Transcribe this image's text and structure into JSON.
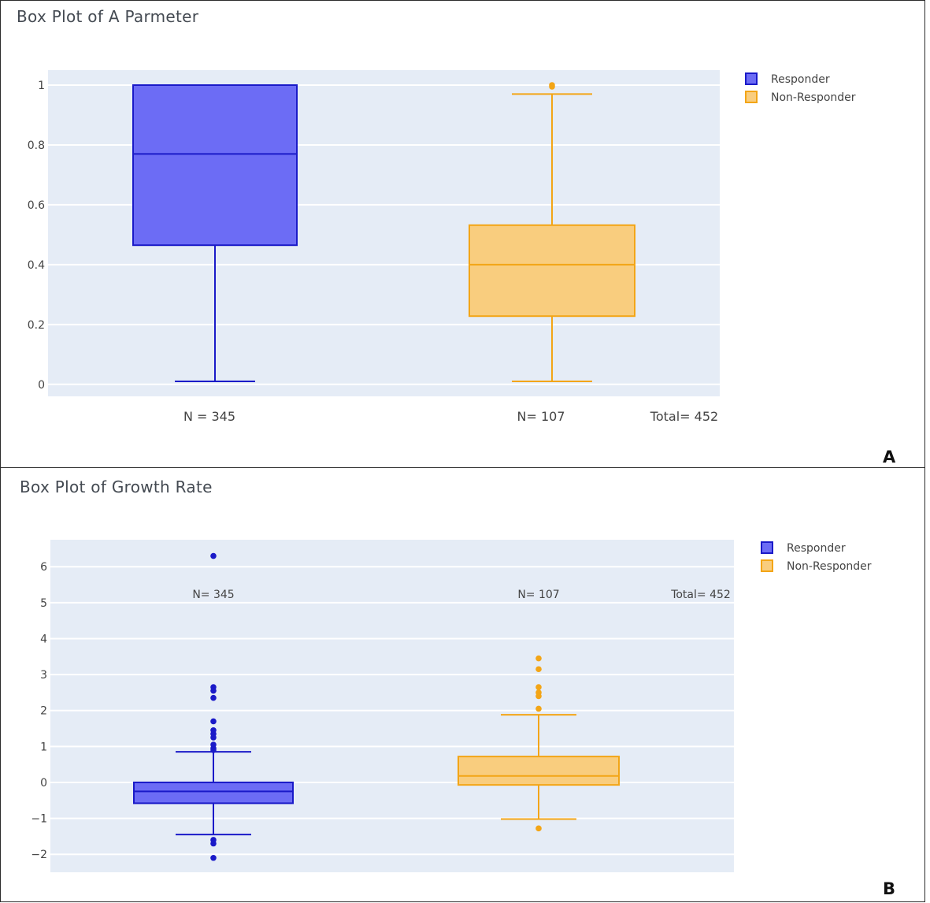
{
  "panel_a": {
    "letter": "A"
  },
  "panel_b": {
    "letter": "B"
  },
  "colors": {
    "responder_line": "#1a1ac8",
    "responder_fill": "#6c6cf5",
    "nonresponder_line": "#f3a516",
    "nonresponder_fill": "#f9cd7e",
    "plot_bg": "#e5ecf6"
  },
  "chart_data": [
    {
      "type": "box",
      "title": "Box Plot of A Parmeter",
      "xlabel": "",
      "ylabel": "",
      "ylim": [
        -0.04,
        1.05
      ],
      "yticks": [
        0,
        0.2,
        0.4,
        0.6,
        0.8,
        1
      ],
      "ytick_labels": [
        "0",
        "0.2",
        "0.4",
        "0.6",
        "0.8",
        "1"
      ],
      "grid": true,
      "legend": {
        "position": "top-right",
        "entries": [
          "Responder",
          "Non-Responder"
        ]
      },
      "series": [
        {
          "name": "Responder",
          "min": 0.01,
          "q1": 0.465,
          "median": 0.77,
          "q3": 1.0,
          "max": 1.0,
          "outliers": []
        },
        {
          "name": "Non-Responder",
          "min": 0.01,
          "q1": 0.228,
          "median": 0.4,
          "q3": 0.532,
          "max": 0.97,
          "outliers": [
            1.0,
            0.995
          ]
        }
      ],
      "annotations": [
        "N = 345",
        "N= 107",
        "Total= 452"
      ]
    },
    {
      "type": "box",
      "title": "Box Plot of Growth Rate",
      "xlabel": "",
      "ylabel": "",
      "ylim": [
        -2.5,
        6.75
      ],
      "yticks": [
        -2,
        -1,
        0,
        1,
        2,
        3,
        4,
        5,
        6
      ],
      "ytick_labels": [
        "−2",
        "−1",
        "0",
        "1",
        "2",
        "3",
        "4",
        "5",
        "6"
      ],
      "grid": true,
      "legend": {
        "position": "top-right",
        "entries": [
          "Responder",
          "Non-Responder"
        ]
      },
      "series": [
        {
          "name": "Responder",
          "min": -1.45,
          "q1": -0.58,
          "median": -0.25,
          "q3": 0.0,
          "max": 0.85,
          "outliers": [
            6.3,
            2.65,
            2.55,
            2.35,
            1.7,
            1.45,
            1.35,
            1.25,
            1.05,
            0.95,
            0.9,
            -1.6,
            -1.7,
            -2.1
          ]
        },
        {
          "name": "Non-Responder",
          "min": -1.02,
          "q1": -0.07,
          "median": 0.18,
          "q3": 0.72,
          "max": 1.88,
          "outliers": [
            3.45,
            3.15,
            2.65,
            2.5,
            2.4,
            2.05,
            -1.28
          ]
        }
      ],
      "annotations": [
        "N= 345",
        "N= 107",
        "Total= 452"
      ]
    }
  ]
}
